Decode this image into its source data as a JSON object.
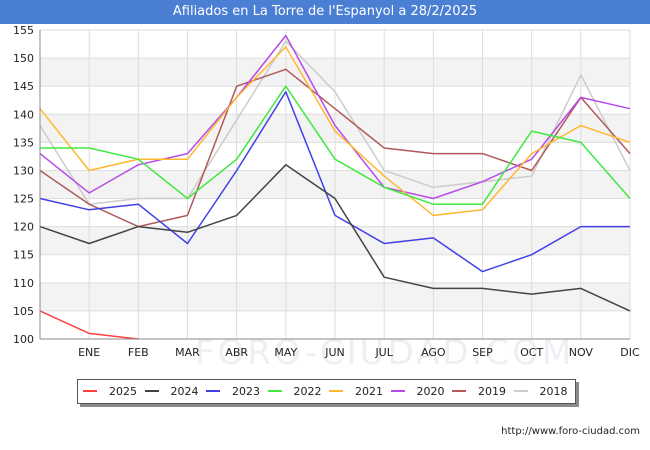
{
  "header": {
    "title": "Afiliados en La Torre de l'Espanyol a 28/2/2025"
  },
  "footer": {
    "source": "http://www.foro-ciudad.com"
  },
  "watermark": "FORO-CIUDAD.COM",
  "chart_data": {
    "type": "line",
    "title": "Afiliados en La Torre de l'Espanyol a 28/2/2025",
    "xlabel": "",
    "ylabel": "",
    "categories": [
      "",
      "ENE",
      "FEB",
      "MAR",
      "ABR",
      "MAY",
      "JUN",
      "JUL",
      "AGO",
      "SEP",
      "OCT",
      "NOV",
      "DIC"
    ],
    "ylim": [
      100,
      155
    ],
    "yticks": [
      100,
      105,
      110,
      115,
      120,
      125,
      130,
      135,
      140,
      145,
      150,
      155
    ],
    "grid": true,
    "legend_position": "bottom",
    "series": [
      {
        "name": "2025",
        "color": "#ff4040",
        "values": [
          105,
          101,
          100,
          null,
          null,
          null,
          null,
          null,
          null,
          null,
          null,
          null,
          null
        ]
      },
      {
        "name": "2024",
        "color": "#444444",
        "values": [
          120,
          117,
          120,
          119,
          122,
          131,
          125,
          111,
          109,
          109,
          108,
          109,
          105
        ]
      },
      {
        "name": "2023",
        "color": "#4040e8",
        "values": [
          125,
          123,
          124,
          117,
          130,
          144,
          122,
          117,
          118,
          112,
          115,
          120,
          120
        ]
      },
      {
        "name": "2022",
        "color": "#40e840",
        "values": [
          134,
          134,
          132,
          125,
          132,
          145,
          132,
          127,
          124,
          124,
          137,
          135,
          125
        ]
      },
      {
        "name": "2021",
        "color": "#ffb830",
        "values": [
          141,
          130,
          132,
          132,
          143,
          152,
          137,
          129,
          122,
          123,
          133,
          138,
          135
        ]
      },
      {
        "name": "2020",
        "color": "#b84ae8",
        "values": [
          133,
          126,
          131,
          133,
          143,
          154,
          138,
          127,
          125,
          128,
          132,
          143,
          141
        ]
      },
      {
        "name": "2019",
        "color": "#b05a5a",
        "values": [
          130,
          124,
          120,
          122,
          145,
          148,
          141,
          134,
          133,
          133,
          130,
          143,
          133
        ]
      },
      {
        "name": "2018",
        "color": "#cccccc",
        "values": [
          138,
          124,
          125,
          125,
          139,
          153,
          144,
          130,
          127,
          128,
          129,
          147,
          130
        ]
      }
    ]
  }
}
